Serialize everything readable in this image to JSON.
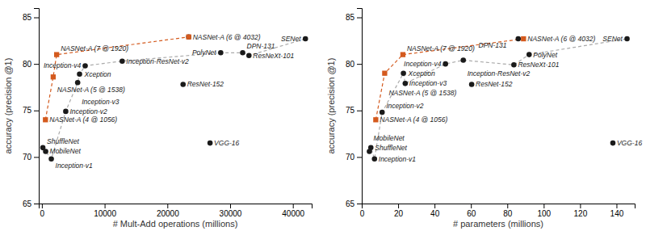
{
  "chart_data": [
    {
      "type": "scatter",
      "xlabel": "# Mult-Add operations (millions)",
      "ylabel": "accuracy (precision @1)",
      "xlim": [
        -500,
        43000
      ],
      "ylim": [
        65,
        86
      ],
      "xticks": [
        0,
        10000,
        20000,
        30000,
        40000
      ],
      "yticks": [
        65,
        70,
        75,
        80,
        85
      ],
      "series": [
        {
          "type": "line",
          "line_style": "dashed",
          "color": "#aaaaaa",
          "x": [
            150,
            600,
            1500,
            3800,
            5700,
            6000,
            6900,
            12800,
            28500,
            32000,
            33000,
            42000
          ],
          "values": [
            71.0,
            70.6,
            69.8,
            74.9,
            78.0,
            78.9,
            79.8,
            80.3,
            81.2,
            81.2,
            80.9,
            82.7
          ]
        },
        {
          "type": "line",
          "line_style": "dashed",
          "color": "#d45a1e",
          "x": [
            564,
            1800,
            2350,
            23400
          ],
          "values": [
            74.0,
            78.6,
            81.0,
            82.9
          ]
        },
        {
          "type": "scatter",
          "marker": "circle",
          "color": "#1a1a1a",
          "x": [
            150,
            600,
            1500,
            3800,
            5700,
            6000,
            6900,
            12800,
            22500,
            23400,
            28500,
            32000,
            33000,
            26800,
            42000
          ],
          "values": [
            71.0,
            70.6,
            69.8,
            74.9,
            78.0,
            78.9,
            79.8,
            80.3,
            77.8,
            82.9,
            81.2,
            81.2,
            80.9,
            71.5,
            82.7
          ],
          "labels": [
            "ShuffleNet",
            "MobileNet",
            "Inception-v1",
            "Inception-v2",
            "Inception-v3",
            "Xception",
            "Inception-v4",
            "Inception-ResNet-v2",
            "ResNet-152",
            null,
            "PolyNet",
            "DPN-131",
            "ResNeXt-101",
            "VGG-16",
            "SENet"
          ]
        },
        {
          "type": "scatter",
          "marker": "square",
          "color": "#d45a1e",
          "x": [
            564,
            1800,
            2350,
            23400
          ],
          "values": [
            74.0,
            78.6,
            81.0,
            82.9
          ],
          "labels": [
            "NASNet-A (4 @ 1056)",
            "NASNet-A (5 @ 1538)",
            "NASNet-A (7 @ 1920)",
            "NASNet-A (6 @ 4032)"
          ]
        }
      ]
    },
    {
      "type": "scatter",
      "xlabel": "# parameters (millions)",
      "ylabel": "accuracy (precision @1)",
      "xlim": [
        0,
        150
      ],
      "ylim": [
        65,
        86
      ],
      "xticks": [
        0,
        20,
        40,
        60,
        80,
        100,
        120,
        140
      ],
      "yticks": [
        65,
        70,
        75,
        80,
        85
      ],
      "series": [
        {
          "type": "line",
          "line_style": "dashed",
          "color": "#aaaaaa",
          "x": [
            4.2,
            5.0,
            7.0,
            11.2,
            22.9,
            23.9,
            46.0,
            55.8,
            83.6,
            92.0,
            145.8
          ],
          "values": [
            70.6,
            71.0,
            69.8,
            74.8,
            79.0,
            77.9,
            80.0,
            80.4,
            79.9,
            81.0,
            82.7
          ]
        },
        {
          "type": "line",
          "line_style": "dashed",
          "color": "#d45a1e",
          "x": [
            7.7,
            12.6,
            22.6,
            88.9
          ],
          "values": [
            74.0,
            79.0,
            81.0,
            82.7
          ]
        },
        {
          "type": "scatter",
          "marker": "circle",
          "color": "#1a1a1a",
          "x": [
            5.0,
            4.2,
            7.0,
            11.2,
            23.9,
            22.9,
            46.0,
            55.8,
            60.4,
            92.0,
            83.6,
            86.0,
            138.0,
            145.8
          ],
          "values": [
            71.0,
            70.6,
            69.8,
            74.8,
            77.9,
            79.0,
            80.0,
            80.4,
            77.8,
            81.0,
            79.9,
            82.7,
            71.5,
            82.7
          ],
          "labels": [
            "ShuffleNet",
            "MobileNet",
            "Inception-v1",
            "Inception-v2",
            "Inception-v3",
            "Xception",
            "Inception-v4",
            "Inception-ResNet-v2",
            "ResNet-152",
            "PolyNet",
            "ResNeXt-101",
            null,
            "VGG-16",
            "SENet"
          ]
        },
        {
          "type": "scatter",
          "marker": "square",
          "color": "#d45a1e",
          "x": [
            7.7,
            12.6,
            22.6,
            88.9
          ],
          "values": [
            74.0,
            79.0,
            81.0,
            82.7
          ],
          "labels": [
            "NASNet-A (4 @ 1056)",
            "NASNet-A (5 @ 1538)",
            "NASNet-A (7 @ 1920)",
            "NASNet-A (6 @ 4032)"
          ]
        }
      ],
      "annotations": [
        {
          "text": "DPN-131",
          "x": 82.0,
          "y": 82.0
        }
      ]
    }
  ]
}
